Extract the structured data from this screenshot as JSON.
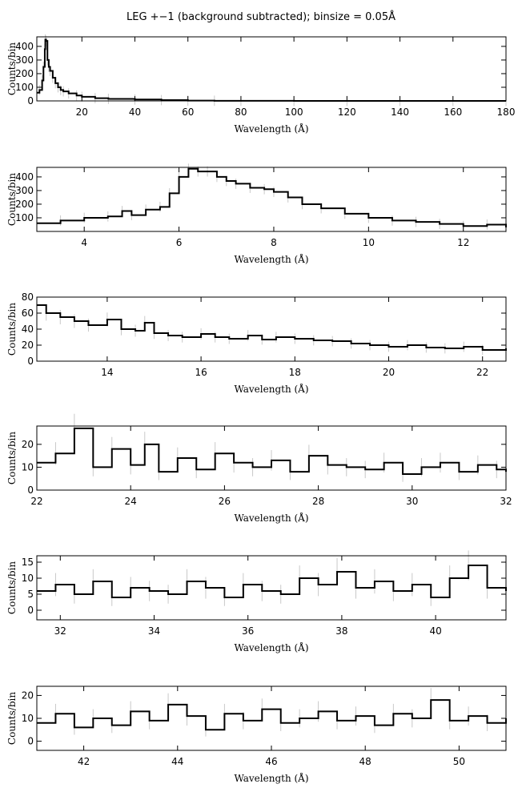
{
  "title": "LEG +−1 (background subtracted); binsize = 0.05Å",
  "colors": {
    "line": "#000000",
    "error_bars": "#c8c8c8",
    "frame": "#000000"
  },
  "chart_data": [
    {
      "type": "line",
      "xlabel": "Wavelength (Å)",
      "ylabel": "Counts/bin",
      "xlim": [
        3,
        180
      ],
      "ylim": [
        0,
        470
      ],
      "xticks": [
        20,
        40,
        60,
        80,
        100,
        120,
        140,
        160,
        180
      ],
      "yticks": [
        0,
        100,
        200,
        300,
        400
      ],
      "series": [
        {
          "x": [
            3,
            4,
            5,
            5.5,
            6,
            6.2,
            6.5,
            7,
            7.5,
            8,
            9,
            10,
            11,
            12,
            13,
            15,
            18,
            20,
            25,
            30,
            40,
            50,
            60,
            70,
            80,
            100,
            120,
            140,
            160,
            180
          ],
          "y": [
            60,
            80,
            150,
            250,
            380,
            450,
            440,
            300,
            250,
            220,
            170,
            130,
            100,
            80,
            70,
            55,
            40,
            30,
            20,
            15,
            10,
            6,
            2,
            1,
            1,
            0,
            0,
            0,
            0,
            0
          ]
        }
      ]
    },
    {
      "type": "line",
      "xlabel": "Wavelength (Å)",
      "ylabel": "Counts/bin",
      "xlim": [
        3,
        12.9
      ],
      "ylim": [
        0,
        470
      ],
      "xticks": [
        4,
        6,
        8,
        10,
        12
      ],
      "yticks": [
        100,
        200,
        300,
        400
      ],
      "series": [
        {
          "x": [
            3,
            3.5,
            4,
            4.5,
            4.8,
            5,
            5.3,
            5.6,
            5.8,
            6,
            6.2,
            6.4,
            6.6,
            6.8,
            7,
            7.2,
            7.5,
            7.8,
            8,
            8.3,
            8.6,
            9,
            9.5,
            10,
            10.5,
            11,
            11.5,
            12,
            12.5,
            12.9
          ],
          "y": [
            60,
            80,
            100,
            110,
            150,
            120,
            160,
            180,
            280,
            400,
            460,
            440,
            440,
            400,
            370,
            350,
            320,
            310,
            290,
            250,
            200,
            170,
            130,
            100,
            80,
            70,
            55,
            40,
            50,
            30
          ]
        }
      ]
    },
    {
      "type": "line",
      "xlabel": "Wavelength (Å)",
      "ylabel": "Counts/bin",
      "xlim": [
        12.5,
        22.5
      ],
      "ylim": [
        0,
        80
      ],
      "xticks": [
        14,
        16,
        18,
        20,
        22
      ],
      "yticks": [
        0,
        20,
        40,
        60,
        80
      ],
      "series": [
        {
          "x": [
            12.5,
            12.7,
            13,
            13.3,
            13.6,
            14,
            14.3,
            14.6,
            14.8,
            15,
            15.3,
            15.6,
            16,
            16.3,
            16.6,
            17,
            17.3,
            17.6,
            18,
            18.4,
            18.8,
            19.2,
            19.6,
            20,
            20.4,
            20.8,
            21.2,
            21.6,
            22,
            22.5
          ],
          "y": [
            70,
            60,
            55,
            50,
            45,
            52,
            40,
            38,
            48,
            35,
            32,
            30,
            34,
            30,
            28,
            32,
            27,
            30,
            28,
            26,
            25,
            22,
            20,
            18,
            20,
            17,
            16,
            18,
            14,
            16
          ]
        }
      ]
    },
    {
      "type": "line",
      "xlabel": "Wavelength (Å)",
      "ylabel": "Counts/bin",
      "xlim": [
        22,
        32
      ],
      "ylim": [
        0,
        28
      ],
      "xticks": [
        22,
        24,
        26,
        28,
        30,
        32
      ],
      "yticks": [
        0,
        10,
        20
      ],
      "series": [
        {
          "x": [
            22,
            22.4,
            22.8,
            23.2,
            23.6,
            24,
            24.3,
            24.6,
            25,
            25.4,
            25.8,
            26.2,
            26.6,
            27,
            27.4,
            27.8,
            28.2,
            28.6,
            29,
            29.4,
            29.8,
            30.2,
            30.6,
            31,
            31.4,
            31.8,
            32
          ],
          "y": [
            12,
            16,
            27,
            10,
            18,
            11,
            20,
            8,
            14,
            9,
            16,
            12,
            10,
            13,
            8,
            15,
            11,
            10,
            9,
            12,
            7,
            10,
            12,
            8,
            11,
            9,
            8
          ]
        }
      ]
    },
    {
      "type": "line",
      "xlabel": "Wavelength (Å)",
      "ylabel": "Counts/bin",
      "xlim": [
        31.5,
        41.5
      ],
      "ylim": [
        -3,
        17
      ],
      "xticks": [
        32,
        34,
        36,
        38,
        40
      ],
      "yticks": [
        0,
        5,
        10,
        15
      ],
      "series": [
        {
          "x": [
            31.5,
            31.9,
            32.3,
            32.7,
            33.1,
            33.5,
            33.9,
            34.3,
            34.7,
            35.1,
            35.5,
            35.9,
            36.3,
            36.7,
            37.1,
            37.5,
            37.9,
            38.3,
            38.7,
            39.1,
            39.5,
            39.9,
            40.3,
            40.7,
            41.1,
            41.5
          ],
          "y": [
            6,
            8,
            5,
            9,
            4,
            7,
            6,
            5,
            9,
            7,
            4,
            8,
            6,
            5,
            10,
            8,
            12,
            7,
            9,
            6,
            8,
            4,
            10,
            14,
            7,
            6
          ]
        }
      ]
    },
    {
      "type": "line",
      "xlabel": "Wavelength (Å)",
      "ylabel": "Counts/bin",
      "xlim": [
        41,
        51
      ],
      "ylim": [
        -4,
        24
      ],
      "xticks": [
        42,
        44,
        46,
        48,
        50
      ],
      "yticks": [
        0,
        10,
        20
      ],
      "series": [
        {
          "x": [
            41,
            41.4,
            41.8,
            42.2,
            42.6,
            43,
            43.4,
            43.8,
            44.2,
            44.6,
            45,
            45.4,
            45.8,
            46.2,
            46.6,
            47,
            47.4,
            47.8,
            48.2,
            48.6,
            49,
            49.4,
            49.8,
            50.2,
            50.6,
            51
          ],
          "y": [
            8,
            12,
            6,
            10,
            7,
            13,
            9,
            16,
            11,
            5,
            12,
            9,
            14,
            8,
            10,
            13,
            9,
            11,
            7,
            12,
            10,
            18,
            9,
            11,
            8,
            10
          ]
        }
      ]
    }
  ]
}
